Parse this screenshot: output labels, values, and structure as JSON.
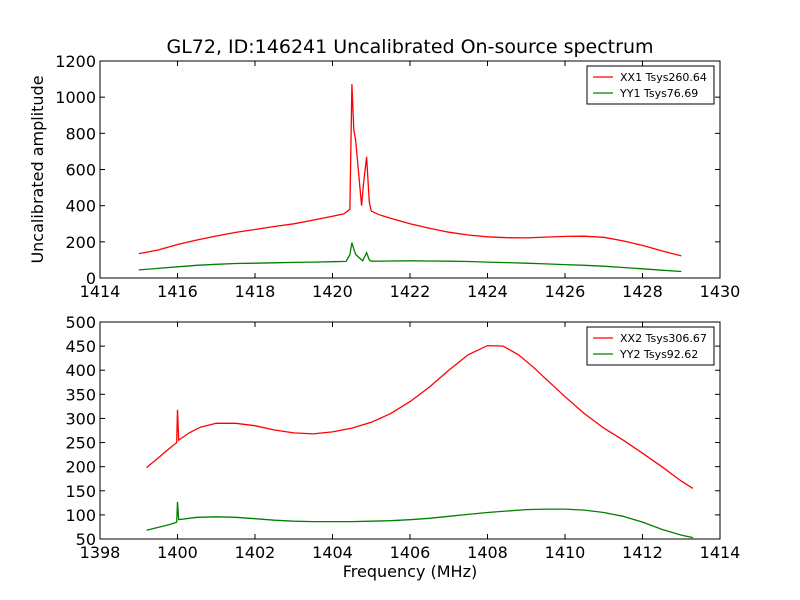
{
  "title": "GL72, ID:146241 Uncalibrated On-source spectrum",
  "chart_data": [
    {
      "type": "line",
      "ylabel": "Uncalibrated amplitude",
      "xlabel": "",
      "xlim": [
        1414,
        1430
      ],
      "ylim": [
        0,
        1200
      ],
      "xticks": [
        1414,
        1416,
        1418,
        1420,
        1422,
        1424,
        1426,
        1428,
        1430
      ],
      "yticks": [
        0,
        200,
        400,
        600,
        800,
        1000,
        1200
      ],
      "legend_position": "top-right",
      "series": [
        {
          "name": "XX1 Tsys260.64",
          "color": "#ff0000",
          "points": [
            [
              1415,
              135
            ],
            [
              1415.5,
              155
            ],
            [
              1416,
              185
            ],
            [
              1416.5,
              210
            ],
            [
              1417,
              232
            ],
            [
              1417.5,
              252
            ],
            [
              1418,
              268
            ],
            [
              1418.5,
              285
            ],
            [
              1419,
              300
            ],
            [
              1419.5,
              320
            ],
            [
              1420,
              342
            ],
            [
              1420.3,
              355
            ],
            [
              1420.45,
              380
            ],
            [
              1420.5,
              1072
            ],
            [
              1420.55,
              820
            ],
            [
              1420.6,
              760
            ],
            [
              1420.7,
              520
            ],
            [
              1420.75,
              400
            ],
            [
              1420.8,
              520
            ],
            [
              1420.88,
              670
            ],
            [
              1420.95,
              420
            ],
            [
              1421,
              370
            ],
            [
              1421.2,
              350
            ],
            [
              1421.5,
              330
            ],
            [
              1422,
              300
            ],
            [
              1422.5,
              275
            ],
            [
              1423,
              253
            ],
            [
              1423.5,
              238
            ],
            [
              1424,
              228
            ],
            [
              1424.5,
              223
            ],
            [
              1425,
              222
            ],
            [
              1425.5,
              226
            ],
            [
              1426,
              230
            ],
            [
              1426.5,
              231
            ],
            [
              1427,
              225
            ],
            [
              1427.5,
              205
            ],
            [
              1428,
              180
            ],
            [
              1428.5,
              150
            ],
            [
              1429,
              122
            ]
          ]
        },
        {
          "name": "YY1 Tsys76.69",
          "color": "#008000",
          "points": [
            [
              1415,
              45
            ],
            [
              1415.5,
              53
            ],
            [
              1416,
              62
            ],
            [
              1416.5,
              70
            ],
            [
              1417,
              76
            ],
            [
              1417.5,
              80
            ],
            [
              1418,
              82
            ],
            [
              1418.5,
              84
            ],
            [
              1419,
              86
            ],
            [
              1419.5,
              88
            ],
            [
              1420,
              90
            ],
            [
              1420.35,
              92
            ],
            [
              1420.45,
              130
            ],
            [
              1420.5,
              195
            ],
            [
              1420.55,
              160
            ],
            [
              1420.6,
              130
            ],
            [
              1420.7,
              110
            ],
            [
              1420.78,
              95
            ],
            [
              1420.88,
              140
            ],
            [
              1420.95,
              100
            ],
            [
              1421,
              93
            ],
            [
              1421.5,
              94
            ],
            [
              1422,
              95
            ],
            [
              1422.5,
              94
            ],
            [
              1423,
              93
            ],
            [
              1423.5,
              91
            ],
            [
              1424,
              88
            ],
            [
              1424.5,
              85
            ],
            [
              1425,
              82
            ],
            [
              1425.5,
              78
            ],
            [
              1426,
              74
            ],
            [
              1426.5,
              70
            ],
            [
              1427,
              65
            ],
            [
              1427.5,
              58
            ],
            [
              1428,
              51
            ],
            [
              1428.5,
              43
            ],
            [
              1429,
              36
            ]
          ]
        }
      ]
    },
    {
      "type": "line",
      "ylabel": "",
      "xlabel": "Frequency (MHz)",
      "xlim": [
        1398,
        1414
      ],
      "ylim": [
        50,
        500
      ],
      "xticks": [
        1398,
        1400,
        1402,
        1404,
        1406,
        1408,
        1410,
        1412,
        1414
      ],
      "yticks": [
        50,
        100,
        150,
        200,
        250,
        300,
        350,
        400,
        450,
        500
      ],
      "legend_position": "top-right",
      "series": [
        {
          "name": "XX2 Tsys306.67",
          "color": "#ff0000",
          "points": [
            [
              1399.2,
              198
            ],
            [
              1399.5,
              218
            ],
            [
              1399.8,
              238
            ],
            [
              1399.98,
              250
            ],
            [
              1400.0,
              318
            ],
            [
              1400.03,
              255
            ],
            [
              1400.3,
              270
            ],
            [
              1400.6,
              282
            ],
            [
              1401,
              290
            ],
            [
              1401.5,
              290
            ],
            [
              1402,
              285
            ],
            [
              1402.5,
              276
            ],
            [
              1403,
              270
            ],
            [
              1403.5,
              268
            ],
            [
              1404,
              272
            ],
            [
              1404.5,
              280
            ],
            [
              1405,
              292
            ],
            [
              1405.5,
              310
            ],
            [
              1406,
              335
            ],
            [
              1406.5,
              365
            ],
            [
              1407,
              400
            ],
            [
              1407.5,
              432
            ],
            [
              1408,
              451
            ],
            [
              1408.4,
              450
            ],
            [
              1408.8,
              432
            ],
            [
              1409.2,
              405
            ],
            [
              1409.6,
              375
            ],
            [
              1410,
              345
            ],
            [
              1410.5,
              310
            ],
            [
              1411,
              280
            ],
            [
              1411.5,
              255
            ],
            [
              1412,
              228
            ],
            [
              1412.5,
              200
            ],
            [
              1413,
              170
            ],
            [
              1413.3,
              155
            ]
          ]
        },
        {
          "name": "YY2 Tsys92.62",
          "color": "#008000",
          "points": [
            [
              1399.2,
              68
            ],
            [
              1399.5,
              74
            ],
            [
              1399.8,
              80
            ],
            [
              1399.98,
              85
            ],
            [
              1400.0,
              127
            ],
            [
              1400.03,
              90
            ],
            [
              1400.5,
              95
            ],
            [
              1401,
              96
            ],
            [
              1401.5,
              95
            ],
            [
              1402,
              92
            ],
            [
              1402.5,
              89
            ],
            [
              1403,
              87
            ],
            [
              1403.5,
              86
            ],
            [
              1404,
              86
            ],
            [
              1404.5,
              86
            ],
            [
              1405,
              87
            ],
            [
              1405.5,
              88
            ],
            [
              1406,
              90
            ],
            [
              1406.5,
              93
            ],
            [
              1407,
              97
            ],
            [
              1407.5,
              101
            ],
            [
              1408,
              105
            ],
            [
              1408.5,
              108
            ],
            [
              1409,
              111
            ],
            [
              1409.5,
              112
            ],
            [
              1410,
              112
            ],
            [
              1410.5,
              110
            ],
            [
              1411,
              105
            ],
            [
              1411.5,
              97
            ],
            [
              1412,
              85
            ],
            [
              1412.5,
              70
            ],
            [
              1413,
              58
            ],
            [
              1413.3,
              53
            ]
          ]
        }
      ]
    }
  ]
}
